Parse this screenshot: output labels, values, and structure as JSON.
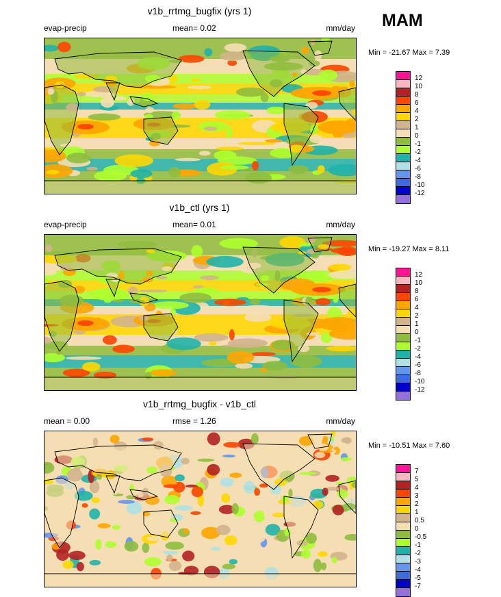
{
  "season": "MAM",
  "colors": {
    "12": "#ff1493",
    "10": "#ffb6c1",
    "8": "#b22222",
    "6": "#ff4500",
    "4": "#ffa500",
    "2": "#ffd700",
    "1": "#d2b48c",
    "0": "#f5deb3",
    "-1": "#8fbc3f",
    "-2": "#adff2f",
    "-4": "#20b2aa",
    "-6": "#b0e0e6",
    "-8": "#6495ed",
    "-10": "#4169e1",
    "-12": "#0000cd",
    "-14": "#9370db",
    "land": "#8fbc3f"
  },
  "panels": [
    {
      "title": "v1b_rrtmg_bugfix (yrs 1)",
      "left_label": "evap-precip",
      "center_label": "mean=   0.02",
      "right_label": "mm/day",
      "minmax": "Min = -21.67 Max =    7.39",
      "colorbar_levels": [
        "12",
        "10",
        "8",
        "6",
        "4",
        "2",
        "1",
        "0",
        "-1",
        "-2",
        "-4",
        "-6",
        "-8",
        "-10",
        "-12"
      ]
    },
    {
      "title": "v1b_ctl (yrs 1)",
      "left_label": "evap-precip",
      "center_label": "mean=   0.01",
      "right_label": "mm/day",
      "minmax": "Min = -19.27 Max =    8.11",
      "colorbar_levels": [
        "12",
        "10",
        "8",
        "6",
        "4",
        "2",
        "1",
        "0",
        "-1",
        "-2",
        "-4",
        "-6",
        "-8",
        "-10",
        "-12"
      ]
    },
    {
      "title": "v1b_rrtmg_bugfix - v1b_ctl",
      "left_label": "mean =   0.00",
      "center_label": "rmse =   1.26",
      "right_label": "mm/day",
      "minmax": "Min = -10.51 Max =    7.60",
      "colorbar_levels": [
        "7",
        "5",
        "4",
        "3",
        "2",
        "1",
        "0.5",
        "0",
        "-0.5",
        "-1",
        "-2",
        "-3",
        "-4",
        "-5",
        "-7"
      ]
    }
  ]
}
